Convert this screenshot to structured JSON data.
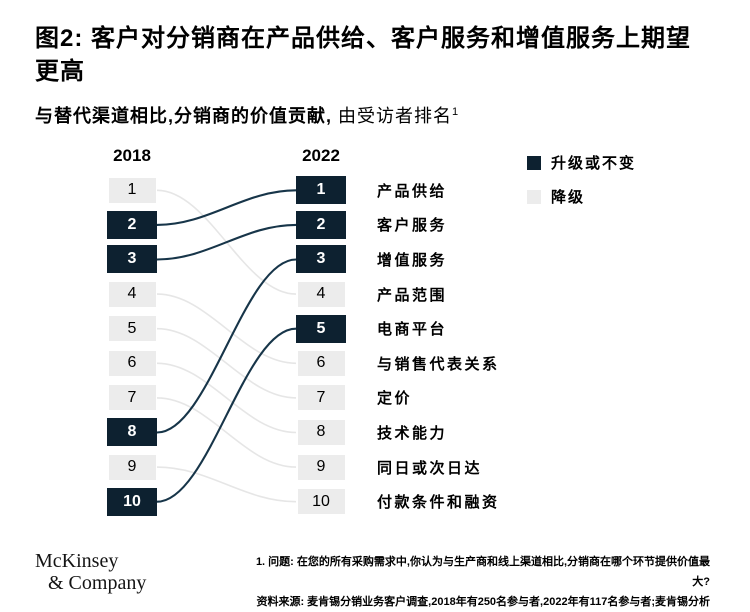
{
  "figure": {
    "title": "图2: 客户对分销商在产品供给、客户服务和增值服务上期望更高",
    "subtitle_bold": "与替代渠道相比,分销商的价值贡献,",
    "subtitle_regular": "由受访者排名",
    "subtitle_sup": "1"
  },
  "columns": {
    "left_header": "2018",
    "right_header": "2022"
  },
  "left_column": {
    "rows": [
      {
        "rank": "1",
        "status": "down"
      },
      {
        "rank": "2",
        "status": "up"
      },
      {
        "rank": "3",
        "status": "up"
      },
      {
        "rank": "4",
        "status": "down"
      },
      {
        "rank": "5",
        "status": "down"
      },
      {
        "rank": "6",
        "status": "down"
      },
      {
        "rank": "7",
        "status": "down"
      },
      {
        "rank": "8",
        "status": "up"
      },
      {
        "rank": "9",
        "status": "down"
      },
      {
        "rank": "10",
        "status": "up"
      }
    ]
  },
  "right_column": {
    "rows": [
      {
        "rank": "1",
        "status": "up",
        "label": "产品供给"
      },
      {
        "rank": "2",
        "status": "up",
        "label": "客户服务"
      },
      {
        "rank": "3",
        "status": "up",
        "label": "增值服务"
      },
      {
        "rank": "4",
        "status": "down",
        "label": "产品范围"
      },
      {
        "rank": "5",
        "status": "up",
        "label": "电商平台"
      },
      {
        "rank": "6",
        "status": "down",
        "label": "与销售代表关系"
      },
      {
        "rank": "7",
        "status": "down",
        "label": "定价"
      },
      {
        "rank": "8",
        "status": "down",
        "label": "技术能力"
      },
      {
        "rank": "9",
        "status": "down",
        "label": "同日或次日达"
      },
      {
        "rank": "10",
        "status": "down",
        "label": "付款条件和融资"
      }
    ]
  },
  "legend": {
    "up_label": "升级或不变",
    "down_label": "降级",
    "up_color": "#0d2130",
    "down_color": "#ececec"
  },
  "chart_data": {
    "type": "slopegraph",
    "title": "图2: 客户对分销商在产品供给、客户服务和增值服务上期望更高",
    "subtitle": "与替代渠道相比,分销商的价值贡献,由受访者排名1",
    "columns": [
      "2018",
      "2022"
    ],
    "rank_range": [
      1,
      10
    ],
    "legend": {
      "up": "升级或不变",
      "down": "降级"
    },
    "items": [
      {
        "label": "产品供给",
        "rank_2018": 2,
        "rank_2022": 1,
        "status": "up"
      },
      {
        "label": "客户服务",
        "rank_2018": 3,
        "rank_2022": 2,
        "status": "up"
      },
      {
        "label": "增值服务",
        "rank_2018": 8,
        "rank_2022": 3,
        "status": "up"
      },
      {
        "label": "产品范围",
        "rank_2018": 1,
        "rank_2022": 4,
        "status": "down"
      },
      {
        "label": "电商平台",
        "rank_2018": 10,
        "rank_2022": 5,
        "status": "up"
      },
      {
        "label": "与销售代表关系",
        "rank_2018": 4,
        "rank_2022": 6,
        "status": "down"
      },
      {
        "label": "定价",
        "rank_2018": 5,
        "rank_2022": 7,
        "status": "down"
      },
      {
        "label": "技术能力",
        "rank_2018": 6,
        "rank_2022": 8,
        "status": "down"
      },
      {
        "label": "同日或次日达",
        "rank_2018": 7,
        "rank_2022": 9,
        "status": "down"
      },
      {
        "label": "付款条件和融资",
        "rank_2018": 9,
        "rank_2022": 10,
        "status": "down"
      }
    ]
  },
  "footer": {
    "logo_line1": "McKinsey",
    "logo_line2": "& Company",
    "footnote_1": "1.  问题: 在您的所有采购需求中,你认为与生产商和线上渠道相比,分销商在哪个环节提供价值最大?",
    "footnote_2": "资料来源: 麦肯锡分销业务客户调查,2018年有250名参与者,2022年有117名参与者;麦肯锡分析"
  }
}
